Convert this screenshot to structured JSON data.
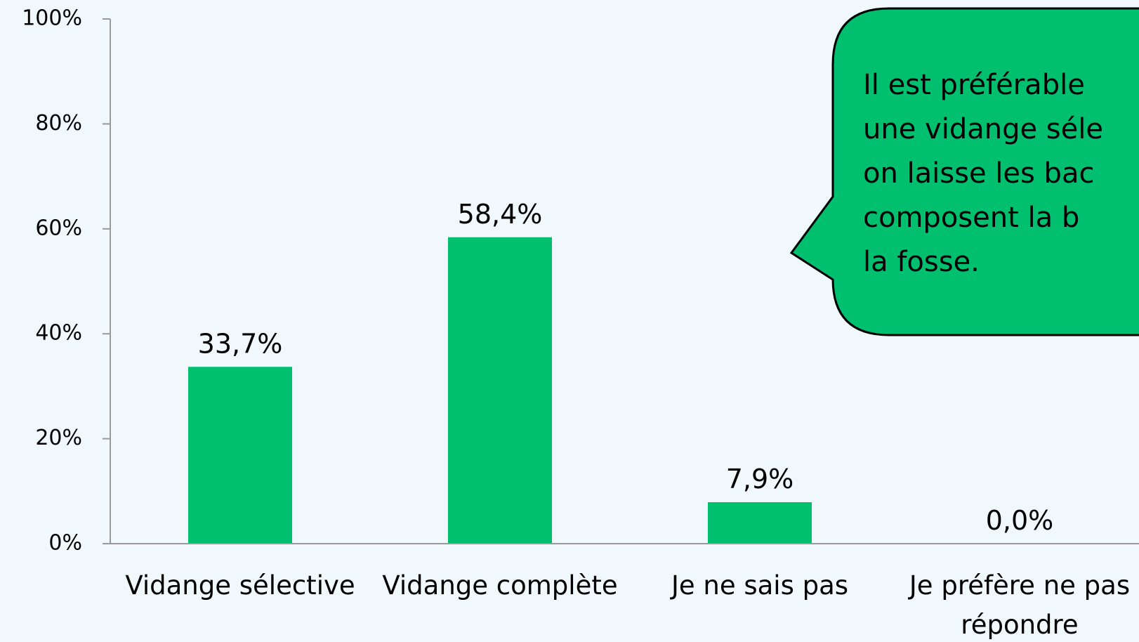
{
  "chart_data": {
    "type": "bar",
    "categories": [
      "Vidange sélective",
      "Vidange complète",
      "Je ne sais pas",
      "Je préfère ne pas répondre"
    ],
    "values": [
      33.7,
      58.4,
      7.9,
      0.0
    ],
    "value_labels": [
      "33,7%",
      "58,4%",
      "7,9%",
      "0,0%"
    ],
    "color": "#00c06f",
    "ylim": [
      0,
      100
    ],
    "yticks": [
      {
        "value": 0,
        "label": "0%"
      },
      {
        "value": 20,
        "label": "20%"
      },
      {
        "value": 40,
        "label": "40%"
      },
      {
        "value": 60,
        "label": "60%"
      },
      {
        "value": 80,
        "label": "80%"
      },
      {
        "value": 100,
        "label": "100%"
      }
    ],
    "grid": false,
    "annotation": [
      "Il est préférable",
      "une vidange séle",
      "on laisse les bac",
      "composent la b",
      "la fosse."
    ]
  }
}
